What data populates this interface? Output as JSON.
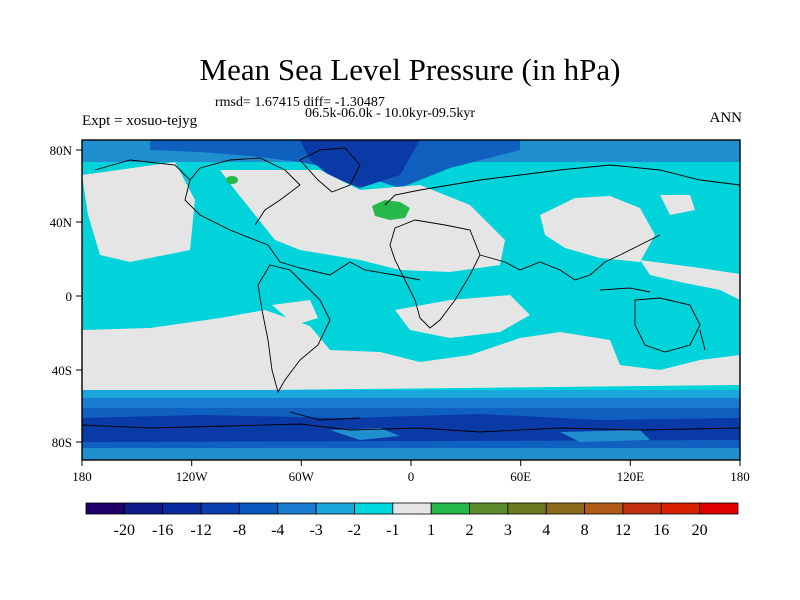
{
  "title": "Mean Sea Level Pressure (in hPa)",
  "stats": "rmsd= 1.67415 diff= -1.30487",
  "period": "06.5k-06.0k - 10.0kyr-09.5kyr",
  "experiment": "Expt = xosuo-tejyg",
  "season": "ANN",
  "map": {
    "lon_ticks": [
      "180",
      "120W",
      "60W",
      "0",
      "60E",
      "120E",
      "180"
    ],
    "lat_ticks": [
      "80N",
      "40N",
      "0",
      "40S",
      "80S"
    ],
    "colors": {
      "land": "#e5e5e5",
      "ocean_light": "#00d3da",
      "ocean_mid": "#1f8fd0",
      "ocean_dark": "#1060c0",
      "deep_blue": "#0a3aa5",
      "positive": "#27b84a"
    }
  },
  "colorbar": {
    "labels": [
      "-20",
      "-16",
      "-12",
      "-8",
      "-4",
      "-3",
      "-2",
      "-1",
      "1",
      "2",
      "3",
      "4",
      "8",
      "12",
      "16",
      "20"
    ],
    "colors": [
      "#200068",
      "#0c1a8a",
      "#0a2aa0",
      "#0a3eb0",
      "#0b58c0",
      "#1a7cd0",
      "#18a8dc",
      "#00d8e0",
      "#e6e6e6",
      "#24b84a",
      "#5a8a2a",
      "#6b7a20",
      "#8a6a18",
      "#b05a18",
      "#c03010",
      "#d82000",
      "#e00000"
    ]
  }
}
